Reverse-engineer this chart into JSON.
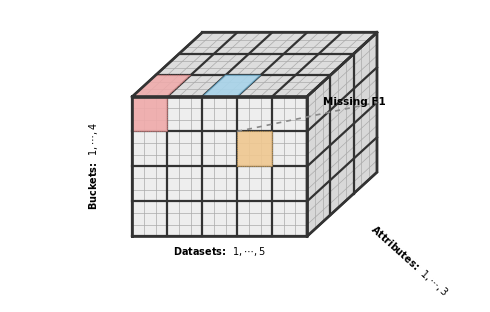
{
  "missing_label": "Missing F1",
  "datasets_label": "Datasets:  $1, \\cdots, 5$",
  "buckets_label": "Buckets:  $1, \\cdots, 4$",
  "attributes_label": "Attributes:  $1, \\cdots, 3$",
  "bg_color": "#ffffff",
  "front_face_color": "#eeeeee",
  "top_face_color": "#dddddd",
  "right_face_color": "#d8d8d8",
  "major_grid_color": "#333333",
  "minor_grid_color": "#aaaaaa",
  "major_lw": 1.6,
  "minor_lw": 0.5,
  "pink_color": "#f0aaaa",
  "pink_edge": "#cc6666",
  "blue_color": "#a8d4ea",
  "blue_edge": "#5599bb",
  "orange_color": "#f0c890",
  "orange_edge": "#cc9944",
  "nx": 5,
  "ny": 4,
  "nz": 3,
  "sub": 3,
  "cw": 0.09,
  "ch": 0.09,
  "ddx": 0.06,
  "ddy": 0.055,
  "ox": 0.22,
  "oy": 0.12
}
